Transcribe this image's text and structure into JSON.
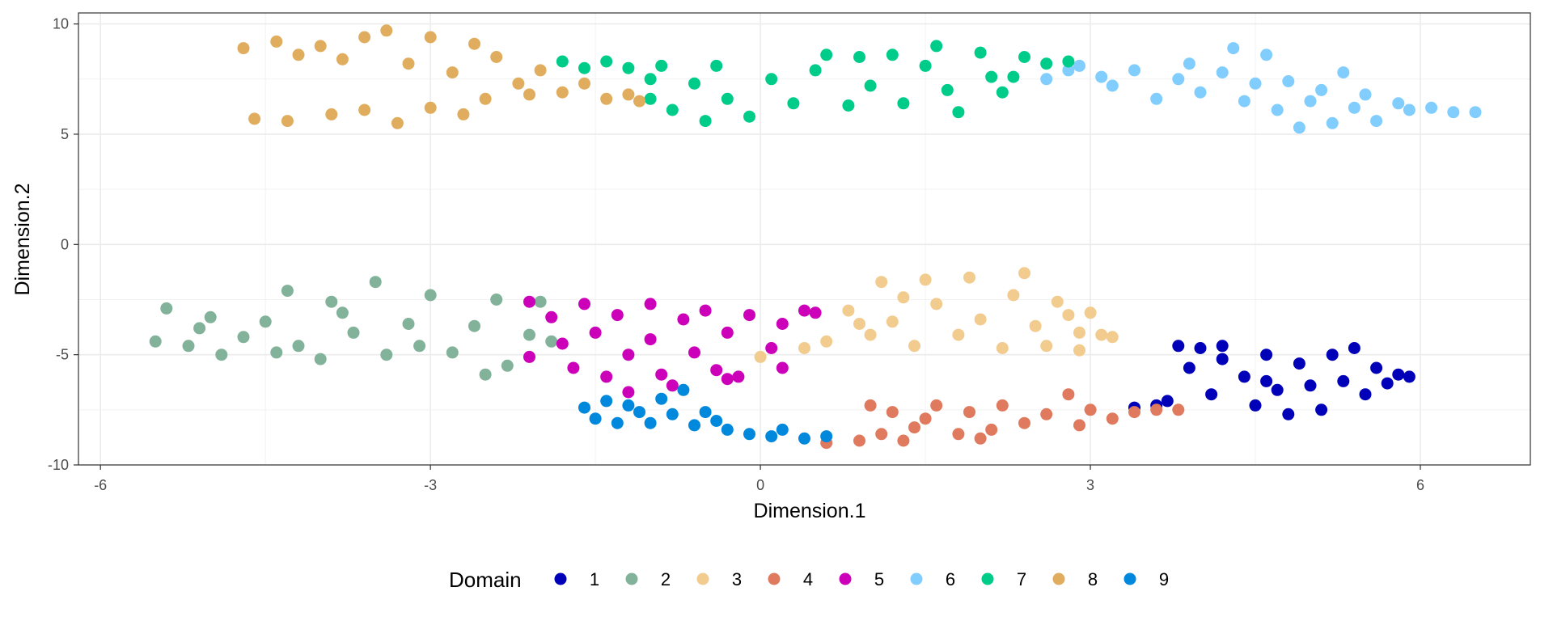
{
  "chart_data": {
    "type": "scatter",
    "title": "",
    "xlabel": "Dimension.1",
    "ylabel": "Dimension.2",
    "xlim": [
      -6.2,
      7.0
    ],
    "ylim": [
      -10.0,
      10.5
    ],
    "xticks": [
      -6,
      -3,
      0,
      3,
      6
    ],
    "yticks": [
      -10,
      -5,
      0,
      5,
      10
    ],
    "xtick_labels": [
      "-6",
      "-3",
      "0",
      "3",
      "6"
    ],
    "ytick_labels": [
      "-10",
      "-5",
      "0",
      "5",
      "10"
    ],
    "grid": true,
    "legend": {
      "title": "Domain",
      "placement": "bottom",
      "entries": [
        "1",
        "2",
        "3",
        "4",
        "5",
        "6",
        "7",
        "8",
        "9"
      ]
    },
    "series": [
      {
        "name": "1",
        "color": "#0000b8",
        "points": [
          [
            3.4,
            -7.4
          ],
          [
            3.7,
            -7.1
          ],
          [
            3.9,
            -5.6
          ],
          [
            3.8,
            -4.6
          ],
          [
            4.0,
            -4.7
          ],
          [
            4.2,
            -5.2
          ],
          [
            4.2,
            -4.6
          ],
          [
            4.4,
            -6.0
          ],
          [
            4.5,
            -7.3
          ],
          [
            4.6,
            -5.0
          ],
          [
            4.7,
            -6.6
          ],
          [
            4.8,
            -7.7
          ],
          [
            4.9,
            -5.4
          ],
          [
            5.0,
            -6.4
          ],
          [
            5.1,
            -7.5
          ],
          [
            5.2,
            -5.0
          ],
          [
            5.3,
            -6.2
          ],
          [
            5.4,
            -4.7
          ],
          [
            5.5,
            -6.8
          ],
          [
            5.6,
            -5.6
          ],
          [
            5.7,
            -6.3
          ],
          [
            5.8,
            -5.9
          ],
          [
            5.9,
            -6.0
          ],
          [
            3.6,
            -7.3
          ],
          [
            4.1,
            -6.8
          ],
          [
            4.6,
            -6.2
          ]
        ]
      },
      {
        "name": "2",
        "color": "#82b29a",
        "points": [
          [
            -5.5,
            -4.4
          ],
          [
            -5.4,
            -2.9
          ],
          [
            -5.2,
            -4.6
          ],
          [
            -5.0,
            -3.3
          ],
          [
            -4.9,
            -5.0
          ],
          [
            -4.7,
            -4.2
          ],
          [
            -4.5,
            -3.5
          ],
          [
            -4.3,
            -2.1
          ],
          [
            -4.2,
            -4.6
          ],
          [
            -4.0,
            -5.2
          ],
          [
            -3.9,
            -2.6
          ],
          [
            -3.7,
            -4.0
          ],
          [
            -3.5,
            -1.7
          ],
          [
            -3.4,
            -5.0
          ],
          [
            -3.2,
            -3.6
          ],
          [
            -3.0,
            -2.3
          ],
          [
            -2.8,
            -4.9
          ],
          [
            -2.6,
            -3.7
          ],
          [
            -2.4,
            -2.5
          ],
          [
            -2.3,
            -5.5
          ],
          [
            -2.1,
            -4.1
          ],
          [
            -2.0,
            -2.6
          ],
          [
            -1.9,
            -4.4
          ],
          [
            -2.5,
            -5.9
          ],
          [
            -5.1,
            -3.8
          ],
          [
            -4.4,
            -4.9
          ],
          [
            -3.8,
            -3.1
          ],
          [
            -3.1,
            -4.6
          ]
        ]
      },
      {
        "name": "3",
        "color": "#f2cc8f",
        "points": [
          [
            0.0,
            -5.1
          ],
          [
            0.4,
            -4.7
          ],
          [
            0.6,
            -4.4
          ],
          [
            0.8,
            -3.0
          ],
          [
            1.0,
            -4.1
          ],
          [
            1.1,
            -1.7
          ],
          [
            1.2,
            -3.5
          ],
          [
            1.4,
            -4.6
          ],
          [
            1.5,
            -1.6
          ],
          [
            1.6,
            -2.7
          ],
          [
            1.8,
            -4.1
          ],
          [
            1.9,
            -1.5
          ],
          [
            2.0,
            -3.4
          ],
          [
            2.2,
            -4.7
          ],
          [
            2.3,
            -2.3
          ],
          [
            2.4,
            -1.3
          ],
          [
            2.5,
            -3.7
          ],
          [
            2.6,
            -4.6
          ],
          [
            2.7,
            -2.6
          ],
          [
            2.8,
            -3.2
          ],
          [
            2.9,
            -4.0
          ],
          [
            3.0,
            -3.1
          ],
          [
            3.1,
            -4.1
          ],
          [
            3.2,
            -4.2
          ],
          [
            2.9,
            -4.8
          ],
          [
            1.3,
            -2.4
          ],
          [
            0.9,
            -3.6
          ]
        ]
      },
      {
        "name": "4",
        "color": "#e07a5f",
        "points": [
          [
            0.6,
            -9.0
          ],
          [
            0.9,
            -8.9
          ],
          [
            1.0,
            -7.3
          ],
          [
            1.1,
            -8.6
          ],
          [
            1.2,
            -7.6
          ],
          [
            1.4,
            -8.3
          ],
          [
            1.5,
            -7.9
          ],
          [
            1.6,
            -7.3
          ],
          [
            1.8,
            -8.6
          ],
          [
            1.9,
            -7.6
          ],
          [
            2.1,
            -8.4
          ],
          [
            2.2,
            -7.3
          ],
          [
            2.4,
            -8.1
          ],
          [
            2.6,
            -7.7
          ],
          [
            2.8,
            -6.8
          ],
          [
            2.9,
            -8.2
          ],
          [
            3.0,
            -7.5
          ],
          [
            3.2,
            -7.9
          ],
          [
            3.4,
            -7.6
          ],
          [
            3.6,
            -7.5
          ],
          [
            3.8,
            -7.5
          ],
          [
            1.3,
            -8.9
          ],
          [
            2.0,
            -8.8
          ]
        ]
      },
      {
        "name": "5",
        "color": "#cc00b8",
        "points": [
          [
            -2.1,
            -5.1
          ],
          [
            -2.1,
            -2.6
          ],
          [
            -1.9,
            -3.3
          ],
          [
            -1.8,
            -4.5
          ],
          [
            -1.7,
            -5.6
          ],
          [
            -1.6,
            -2.7
          ],
          [
            -1.5,
            -4.0
          ],
          [
            -1.4,
            -6.0
          ],
          [
            -1.3,
            -3.2
          ],
          [
            -1.2,
            -5.0
          ],
          [
            -1.2,
            -6.7
          ],
          [
            -1.0,
            -2.7
          ],
          [
            -1.0,
            -4.3
          ],
          [
            -0.9,
            -5.9
          ],
          [
            -0.8,
            -6.4
          ],
          [
            -0.7,
            -3.4
          ],
          [
            -0.6,
            -4.9
          ],
          [
            -0.5,
            -3.0
          ],
          [
            -0.4,
            -5.7
          ],
          [
            -0.3,
            -4.0
          ],
          [
            -0.2,
            -6.0
          ],
          [
            -0.1,
            -3.2
          ],
          [
            0.1,
            -4.7
          ],
          [
            0.2,
            -3.6
          ],
          [
            0.4,
            -3.0
          ],
          [
            0.5,
            -3.1
          ],
          [
            0.2,
            -5.6
          ],
          [
            -0.3,
            -6.1
          ]
        ]
      },
      {
        "name": "6",
        "color": "#81cdfd",
        "points": [
          [
            2.8,
            7.9
          ],
          [
            2.9,
            8.1
          ],
          [
            3.1,
            7.6
          ],
          [
            3.2,
            7.2
          ],
          [
            3.4,
            7.9
          ],
          [
            3.6,
            6.6
          ],
          [
            3.8,
            7.5
          ],
          [
            3.9,
            8.2
          ],
          [
            4.0,
            6.9
          ],
          [
            4.2,
            7.8
          ],
          [
            4.3,
            8.9
          ],
          [
            4.4,
            6.5
          ],
          [
            4.5,
            7.3
          ],
          [
            4.6,
            8.6
          ],
          [
            4.7,
            6.1
          ],
          [
            4.8,
            7.4
          ],
          [
            4.9,
            5.3
          ],
          [
            5.0,
            6.5
          ],
          [
            5.1,
            7.0
          ],
          [
            5.2,
            5.5
          ],
          [
            5.3,
            7.8
          ],
          [
            5.4,
            6.2
          ],
          [
            5.5,
            6.8
          ],
          [
            5.6,
            5.6
          ],
          [
            5.8,
            6.4
          ],
          [
            5.9,
            6.1
          ],
          [
            6.1,
            6.2
          ],
          [
            6.3,
            6.0
          ],
          [
            6.5,
            6.0
          ],
          [
            2.6,
            7.5
          ]
        ]
      },
      {
        "name": "7",
        "color": "#00cc8a",
        "points": [
          [
            -1.8,
            8.3
          ],
          [
            -1.6,
            8.0
          ],
          [
            -1.4,
            8.3
          ],
          [
            -1.2,
            8.0
          ],
          [
            -1.0,
            7.5
          ],
          [
            -1.0,
            6.6
          ],
          [
            -0.9,
            8.1
          ],
          [
            -0.8,
            6.1
          ],
          [
            -0.6,
            7.3
          ],
          [
            -0.5,
            5.6
          ],
          [
            -0.4,
            8.1
          ],
          [
            -0.3,
            6.6
          ],
          [
            -0.1,
            5.8
          ],
          [
            0.1,
            7.5
          ],
          [
            0.3,
            6.4
          ],
          [
            0.5,
            7.9
          ],
          [
            0.6,
            8.6
          ],
          [
            0.8,
            6.3
          ],
          [
            0.9,
            8.5
          ],
          [
            1.0,
            7.2
          ],
          [
            1.2,
            8.6
          ],
          [
            1.3,
            6.4
          ],
          [
            1.5,
            8.1
          ],
          [
            1.6,
            9.0
          ],
          [
            1.7,
            7.0
          ],
          [
            1.8,
            6.0
          ],
          [
            2.0,
            8.7
          ],
          [
            2.1,
            7.6
          ],
          [
            2.2,
            6.9
          ],
          [
            2.3,
            7.6
          ],
          [
            2.4,
            8.5
          ],
          [
            2.6,
            8.2
          ],
          [
            2.8,
            8.3
          ]
        ]
      },
      {
        "name": "8",
        "color": "#e0ad5e",
        "points": [
          [
            -4.7,
            8.9
          ],
          [
            -4.6,
            5.7
          ],
          [
            -4.4,
            9.2
          ],
          [
            -4.3,
            5.6
          ],
          [
            -4.2,
            8.6
          ],
          [
            -4.0,
            9.0
          ],
          [
            -3.9,
            5.9
          ],
          [
            -3.8,
            8.4
          ],
          [
            -3.6,
            9.4
          ],
          [
            -3.6,
            6.1
          ],
          [
            -3.4,
            9.7
          ],
          [
            -3.3,
            5.5
          ],
          [
            -3.2,
            8.2
          ],
          [
            -3.0,
            9.4
          ],
          [
            -3.0,
            6.2
          ],
          [
            -2.8,
            7.8
          ],
          [
            -2.7,
            5.9
          ],
          [
            -2.6,
            9.1
          ],
          [
            -2.5,
            6.6
          ],
          [
            -2.4,
            8.5
          ],
          [
            -2.2,
            7.3
          ],
          [
            -2.1,
            6.8
          ],
          [
            -2.0,
            7.9
          ],
          [
            -1.8,
            6.9
          ],
          [
            -1.6,
            7.3
          ],
          [
            -1.4,
            6.6
          ],
          [
            -1.2,
            6.8
          ],
          [
            -1.1,
            6.5
          ]
        ]
      },
      {
        "name": "9",
        "color": "#0088dd",
        "points": [
          [
            -1.6,
            -7.4
          ],
          [
            -1.5,
            -7.9
          ],
          [
            -1.4,
            -7.1
          ],
          [
            -1.3,
            -8.1
          ],
          [
            -1.1,
            -7.6
          ],
          [
            -1.0,
            -8.1
          ],
          [
            -0.9,
            -7.0
          ],
          [
            -0.8,
            -7.7
          ],
          [
            -0.7,
            -6.6
          ],
          [
            -0.6,
            -8.2
          ],
          [
            -0.5,
            -7.6
          ],
          [
            -0.3,
            -8.4
          ],
          [
            -0.1,
            -8.6
          ],
          [
            0.1,
            -8.7
          ],
          [
            0.2,
            -8.4
          ],
          [
            0.4,
            -8.8
          ],
          [
            0.6,
            -8.7
          ],
          [
            -1.2,
            -7.3
          ],
          [
            -0.4,
            -8.0
          ]
        ]
      }
    ]
  }
}
